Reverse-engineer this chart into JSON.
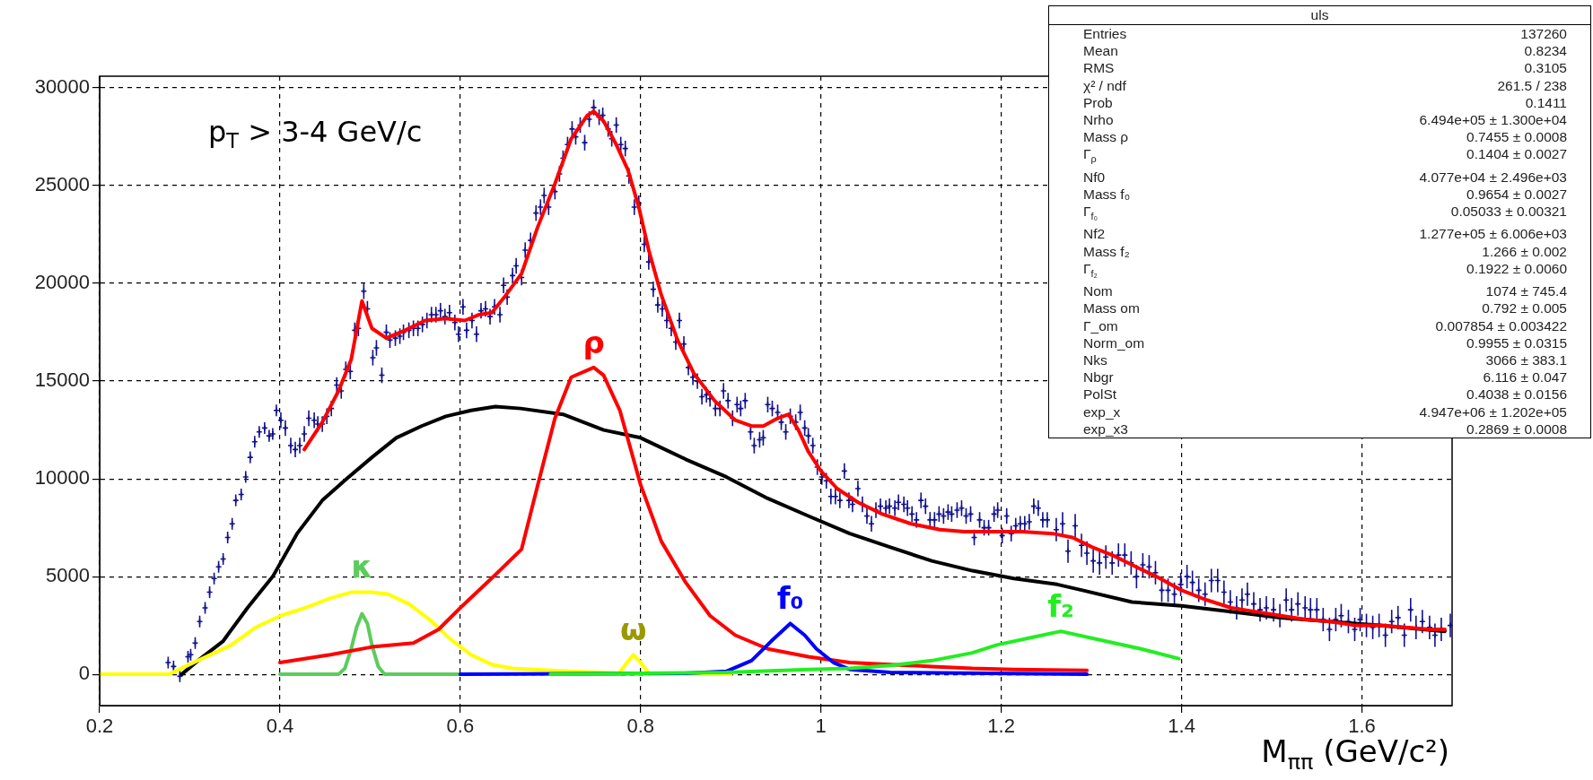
{
  "chart_data": {
    "type": "line",
    "xlabel": "M$_{ππ}$ (GeV/c²)",
    "xlim": [
      0.2,
      1.7
    ],
    "xticks": [
      0.2,
      0.4,
      0.6,
      0.8,
      1,
      1.2,
      1.4,
      1.6
    ],
    "ylim": [
      -1600,
      30600
    ],
    "yticks": [
      0,
      5000,
      10000,
      15000,
      20000,
      25000,
      30000
    ],
    "grid": true,
    "marker": "none",
    "annotations": [
      "p$_{T}$ > 3-4 GeV/c",
      "uls",
      "Entries",
      "137260",
      "Mean",
      "0.8234",
      "RMS",
      "0.3105",
      "χ² / ndf",
      "261.5 / 238",
      "Prob",
      "0.1411",
      "Nrho",
      "6.494e+05 ± 1.300e+04",
      "Mass ρ",
      "0.7455 ± 0.0008",
      "Γ$_{ρ}$",
      "0.1404 ± 0.0027",
      "Nf0",
      "4.077e+04 ± 2.496e+03",
      "Mass f₀",
      "0.9654 ± 0.0027",
      "Γ$_{f₀}$",
      "0.05033 ± 0.00321",
      "Nf2",
      "1.277e+05 ± 6.006e+03",
      "Mass f₂",
      "1.266 ± 0.002",
      "Γ$_{f₂}$",
      "0.1922 ± 0.0060",
      "Nom",
      "1074 ± 745.4",
      "Mass om",
      "0.792 ± 0.005",
      "Γ_om",
      "0.007854 ± 0.003422",
      "Norm_om",
      "0.9955 ± 0.0315",
      "Nks",
      "3066 ± 383.1",
      "Nbgr",
      "6.116 ± 0.047",
      "PolSt",
      "0.4038 ± 0.0156",
      "exp_x",
      "4.947e+06 ± 1.202e+05",
      "exp_x3",
      "0.2869 ± 0.0008"
    ],
    "series": [
      {
        "type": "scatter",
        "marker": "cross",
        "color": "#10108c",
        "x": [
          0.276,
          0.282,
          0.289,
          0.298,
          0.301,
          0.306,
          0.311,
          0.317,
          0.322,
          0.327,
          0.332,
          0.337,
          0.342,
          0.347,
          0.351,
          0.357,
          0.362,
          0.367,
          0.372,
          0.377,
          0.383,
          0.388,
          0.392,
          0.396,
          0.401,
          0.406,
          0.412,
          0.417,
          0.422,
          0.427,
          0.432,
          0.438,
          0.442,
          0.447,
          0.452,
          0.457,
          0.463,
          0.468,
          0.473,
          0.478,
          0.483,
          0.487,
          0.493,
          0.497,
          0.503,
          0.507,
          0.513,
          0.518,
          0.522,
          0.528,
          0.533,
          0.537,
          0.543,
          0.548,
          0.553,
          0.558,
          0.563,
          0.568,
          0.573,
          0.578,
          0.583,
          0.588,
          0.594,
          0.598,
          0.603,
          0.607,
          0.613,
          0.618,
          0.623,
          0.628,
          0.633,
          0.638,
          0.644,
          0.648,
          0.652,
          0.658,
          0.662,
          0.668,
          0.672,
          0.678,
          0.684,
          0.689,
          0.693,
          0.698,
          0.705,
          0.71,
          0.714,
          0.719,
          0.724,
          0.728,
          0.733,
          0.738,
          0.743,
          0.748,
          0.754,
          0.758,
          0.764,
          0.768,
          0.773,
          0.778,
          0.783,
          0.787,
          0.793,
          0.798,
          0.804,
          0.809,
          0.814,
          0.819,
          0.824,
          0.829,
          0.834,
          0.839,
          0.843,
          0.848,
          0.853,
          0.858,
          0.863,
          0.868,
          0.873,
          0.877,
          0.883,
          0.888,
          0.892,
          0.897,
          0.902,
          0.907,
          0.911,
          0.916,
          0.922,
          0.926,
          0.932,
          0.936,
          0.941,
          0.946,
          0.952,
          0.956,
          0.961,
          0.966,
          0.972,
          0.977,
          0.982,
          0.986,
          0.991,
          0.996,
          1.001,
          1.006,
          1.011,
          1.016,
          1.021,
          1.026,
          1.031,
          1.035,
          1.041,
          1.046,
          1.051,
          1.056,
          1.061,
          1.066,
          1.072,
          1.076,
          1.082,
          1.086,
          1.092,
          1.096,
          1.101,
          1.106,
          1.111,
          1.116,
          1.121,
          1.126,
          1.131,
          1.136,
          1.141,
          1.145,
          1.151,
          1.156,
          1.161,
          1.166,
          1.17,
          1.176,
          1.181,
          1.186,
          1.192,
          1.196,
          1.201,
          1.206,
          1.211,
          1.216,
          1.221,
          1.226,
          1.231,
          1.236,
          1.241,
          1.246,
          1.251,
          1.261,
          1.268,
          1.274,
          1.282,
          1.289,
          1.295,
          1.302,
          1.309,
          1.316,
          1.323,
          1.33,
          1.337,
          1.344,
          1.35,
          1.357,
          1.364,
          1.371,
          1.378,
          1.385,
          1.392,
          1.399,
          1.406,
          1.412,
          1.419,
          1.426,
          1.433,
          1.44,
          1.447,
          1.454,
          1.461,
          1.467,
          1.473,
          1.48,
          1.487,
          1.494,
          1.502,
          1.509,
          1.516,
          1.522,
          1.529,
          1.537,
          1.543,
          1.55,
          1.557,
          1.564,
          1.571,
          1.577,
          1.585,
          1.592,
          1.598,
          1.605,
          1.612,
          1.619,
          1.626,
          1.633,
          1.64,
          1.647,
          1.654,
          1.66,
          1.667,
          1.675,
          1.681,
          1.688,
          1.698
        ],
        "values": [
          600,
          400,
          -100,
          900,
          1000,
          1600,
          2700,
          3400,
          4200,
          4900,
          5500,
          5900,
          7000,
          7700,
          8900,
          9200,
          10100,
          11100,
          11900,
          12400,
          12600,
          12200,
          12300,
          13500,
          13000,
          12600,
          11700,
          11500,
          11700,
          12300,
          13100,
          13000,
          12800,
          12800,
          13200,
          13600,
          14800,
          14500,
          15600,
          15500,
          17600,
          17700,
          19600,
          18700,
          16200,
          16700,
          15300,
          17500,
          17100,
          17200,
          17300,
          17500,
          17600,
          17700,
          17700,
          17900,
          18100,
          18400,
          18400,
          18600,
          18300,
          18500,
          18000,
          17400,
          18800,
          17600,
          18100,
          17400,
          18600,
          18700,
          18300,
          18800,
          18400,
          19900,
          19300,
          20400,
          20900,
          20300,
          21700,
          22200,
          23600,
          23900,
          24500,
          23900,
          24700,
          25600,
          26400,
          27100,
          27900,
          27500,
          28100,
          27200,
          28400,
          29000,
          28500,
          28600,
          27900,
          27400,
          28100,
          27100,
          26900,
          25500,
          23900,
          24100,
          22000,
          21100,
          19700,
          18900,
          18700,
          18100,
          17700,
          17000,
          18100,
          16900,
          15700,
          15200,
          15000,
          14200,
          14300,
          14100,
          13600,
          13600,
          14500,
          14000,
          13100,
          13800,
          13600,
          14000,
          12400,
          11700,
          12000,
          12100,
          13800,
          13600,
          13400,
          12900,
          12400,
          13200,
          12900,
          13400,
          12600,
          12200,
          11700,
          10600,
          10100,
          9900,
          9100,
          9100,
          8900,
          10400,
          8900,
          8700,
          9500,
          8700,
          8100,
          7700,
          8400,
          8600,
          8500,
          8600,
          8500,
          8800,
          8700,
          8500,
          8200,
          7900,
          8900,
          8600,
          7900,
          7900,
          8200,
          8100,
          8300,
          8200,
          8400,
          8500,
          8100,
          8200,
          7000,
          7900,
          7500,
          7500,
          8200,
          8400,
          7100,
          8100,
          7200,
          7600,
          7700,
          7700,
          7800,
          8600,
          8500,
          7900,
          7900,
          7400,
          7700,
          6300,
          7600,
          6600,
          6200,
          5800,
          5700,
          6000,
          5700,
          6100,
          6100,
          5700,
          5000,
          5600,
          5500,
          5200,
          4300,
          4300,
          4100,
          4600,
          5000,
          4700,
          4300,
          4100,
          4800,
          4800,
          4200,
          3700,
          3400,
          3800,
          4100,
          3600,
          3300,
          3400,
          3300,
          3000,
          3800,
          3300,
          3600,
          3400,
          3300,
          3300,
          2800,
          2300,
          2800,
          3000,
          2700,
          2300,
          2800,
          2500,
          2400,
          2500,
          2000,
          2700,
          2900,
          2000,
          3300,
          2400,
          2700,
          2400,
          2000,
          2300,
          2500
        ],
        "errors": [
          300,
          300,
          300,
          300,
          300,
          300,
          300,
          300,
          300,
          300,
          300,
          300,
          300,
          300,
          300,
          300,
          300,
          300,
          300,
          300,
          300,
          300,
          300,
          300,
          400,
          400,
          400,
          400,
          400,
          400,
          400,
          400,
          400,
          400,
          400,
          400,
          400,
          400,
          400,
          400,
          400,
          400,
          400,
          400,
          400,
          400,
          400,
          400,
          400,
          400,
          400,
          400,
          400,
          400,
          400,
          400,
          400,
          400,
          400,
          400,
          400,
          400,
          400,
          400,
          400,
          400,
          400,
          400,
          400,
          400,
          400,
          400,
          400,
          400,
          400,
          400,
          400,
          400,
          400,
          400,
          400,
          400,
          400,
          400,
          400,
          400,
          400,
          400,
          400,
          400,
          400,
          400,
          400,
          400,
          400,
          400,
          400,
          400,
          400,
          400,
          400,
          400,
          400,
          400,
          400,
          400,
          400,
          400,
          400,
          400,
          400,
          400,
          400,
          400,
          400,
          400,
          400,
          400,
          400,
          400,
          400,
          400,
          400,
          400,
          400,
          400,
          400,
          400,
          400,
          400,
          400,
          400,
          400,
          400,
          400,
          400,
          400,
          400,
          400,
          400,
          400,
          400,
          400,
          400,
          400,
          400,
          400,
          400,
          400,
          400,
          400,
          400,
          400,
          400,
          400,
          400,
          400,
          400,
          400,
          400,
          400,
          400,
          400,
          400,
          400,
          400,
          400,
          400,
          400,
          400,
          400,
          400,
          400,
          400,
          400,
          400,
          400,
          400,
          400,
          400,
          400,
          400,
          400,
          400,
          400,
          400,
          400,
          400,
          400,
          400,
          400,
          400,
          400,
          400,
          400,
          600,
          600,
          600,
          600,
          600,
          600,
          600,
          600,
          600,
          600,
          600,
          600,
          600,
          600,
          600,
          600,
          600,
          600,
          600,
          600,
          600,
          600,
          600,
          600,
          600,
          600,
          600,
          600,
          600,
          600,
          600,
          600,
          600,
          600,
          600,
          600,
          600,
          600,
          600,
          600,
          600,
          600,
          600,
          600,
          600,
          600,
          600,
          600,
          600,
          600,
          600,
          600,
          600,
          600,
          600,
          600,
          600,
          600,
          600,
          600,
          600,
          600,
          600,
          600
        ]
      },
      {
        "color": "#000000",
        "x": [
          0.291,
          0.309,
          0.337,
          0.364,
          0.392,
          0.419,
          0.447,
          0.474,
          0.502,
          0.529,
          0.557,
          0.584,
          0.612,
          0.639,
          0.667,
          0.714,
          0.759,
          0.8,
          0.85,
          0.895,
          0.941,
          0.986,
          1.032,
          1.077,
          1.123,
          1.168,
          1.214,
          1.262,
          1.29,
          1.345,
          1.4,
          1.455,
          1.51,
          1.565,
          1.62,
          1.692
        ],
        "values": [
          0,
          700,
          1700,
          3400,
          5000,
          7200,
          8900,
          10000,
          11100,
          12100,
          12700,
          13200,
          13500,
          13700,
          13600,
          13300,
          12500,
          12100,
          11000,
          10100,
          9000,
          8100,
          7200,
          6500,
          5800,
          5300,
          4900,
          4600,
          4300,
          3700,
          3500,
          3200,
          2900,
          2700,
          2500,
          2200
        ]
      },
      {
        "color": "#ffff00",
        "x": [
          0.2,
          0.277,
          0.295,
          0.318,
          0.346,
          0.373,
          0.401,
          0.428,
          0.456,
          0.479,
          0.502,
          0.52,
          0.543,
          0.566,
          0.589,
          0.612,
          0.635,
          0.658,
          0.72,
          0.78,
          0.9
        ],
        "values": [
          0,
          0,
          400,
          900,
          1500,
          2400,
          3000,
          3400,
          3900,
          4200,
          4200,
          4100,
          3600,
          2800,
          1800,
          1000,
          500,
          300,
          150,
          50,
          0
        ]
      },
      {
        "name": "κ",
        "color": "#5ccc5c",
        "x": [
          0.4,
          0.465,
          0.472,
          0.479,
          0.485,
          0.491,
          0.497,
          0.502,
          0.509,
          0.516,
          0.6
        ],
        "values": [
          0,
          0,
          300,
          1300,
          2400,
          3100,
          2600,
          1500,
          400,
          0,
          0
        ]
      },
      {
        "name": "ρ",
        "color": "#ff0000",
        "x": [
          0.4,
          0.456,
          0.502,
          0.548,
          0.576,
          0.6,
          0.639,
          0.668,
          0.686,
          0.705,
          0.723,
          0.748,
          0.759,
          0.777,
          0.8,
          0.823,
          0.85,
          0.877,
          0.905,
          0.941,
          0.986,
          1.032,
          1.077,
          1.123,
          1.168,
          1.214,
          1.295
        ],
        "values": [
          600,
          1000,
          1400,
          1600,
          2300,
          3400,
          5100,
          6400,
          9700,
          13100,
          15200,
          15700,
          15300,
          13500,
          9700,
          6800,
          4700,
          3000,
          2000,
          1300,
          900,
          600,
          500,
          400,
          300,
          250,
          200
        ]
      },
      {
        "name": "ω",
        "color": "#ffff00",
        "x": [
          0.7,
          0.775,
          0.785,
          0.792,
          0.8,
          0.81,
          0.9
        ],
        "values": [
          0,
          0,
          600,
          1000,
          600,
          0,
          0
        ]
      },
      {
        "name": "f₀",
        "color": "#0000ff",
        "x": [
          0.6,
          0.85,
          0.895,
          0.923,
          0.945,
          0.966,
          0.982,
          0.995,
          1.014,
          1.032,
          1.077,
          1.295
        ],
        "values": [
          0,
          50,
          150,
          700,
          1700,
          2600,
          2000,
          1300,
          600,
          250,
          100,
          0
        ]
      },
      {
        "name": "f₂",
        "color": "#22ee22",
        "x": [
          0.7,
          0.895,
          0.986,
          1.032,
          1.077,
          1.123,
          1.168,
          1.195,
          1.235,
          1.266,
          1.315,
          1.355,
          1.397
        ],
        "values": [
          0,
          100,
          250,
          300,
          450,
          700,
          1100,
          1500,
          1900,
          2200,
          1700,
          1300,
          800
        ]
      },
      {
        "color": "#ff0000",
        "x": [
          0.427,
          0.447,
          0.465,
          0.479,
          0.491,
          0.502,
          0.518,
          0.539,
          0.561,
          0.584,
          0.605,
          0.621,
          0.635,
          0.649,
          0.668,
          0.686,
          0.705,
          0.723,
          0.741,
          0.748,
          0.759,
          0.773,
          0.786,
          0.798,
          0.809,
          0.823,
          0.841,
          0.859,
          0.882,
          0.905,
          0.923,
          0.936,
          0.952,
          0.964,
          0.975,
          0.986,
          1,
          1.018,
          1.041,
          1.068,
          1.1,
          1.132,
          1.159,
          1.191,
          1.223,
          1.257,
          1.279,
          1.301,
          1.323,
          1.345,
          1.372,
          1.4,
          1.428,
          1.455,
          1.483,
          1.51,
          1.538,
          1.565,
          1.593,
          1.62,
          1.648,
          1.675,
          1.692
        ],
        "values": [
          11500,
          12900,
          14500,
          16100,
          19100,
          17700,
          17200,
          17600,
          18100,
          18200,
          18100,
          18400,
          18500,
          19300,
          20500,
          22900,
          25100,
          27400,
          28600,
          28800,
          28300,
          27100,
          25800,
          23900,
          21700,
          19400,
          17100,
          15400,
          14000,
          13000,
          12700,
          12700,
          13100,
          13300,
          12500,
          11400,
          10400,
          9500,
          8800,
          8200,
          7700,
          7400,
          7300,
          7300,
          7300,
          7200,
          7000,
          6500,
          6100,
          5600,
          5000,
          4300,
          3800,
          3400,
          3200,
          3000,
          2800,
          2700,
          2500,
          2500,
          2400,
          2300,
          2300
        ]
      }
    ]
  }
}
